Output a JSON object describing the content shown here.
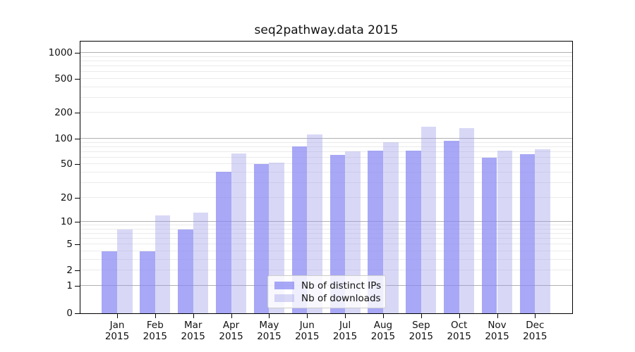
{
  "chart_data": {
    "type": "bar",
    "title": "seq2pathway.data 2015",
    "y_scale": "log10(1+x)",
    "grid": "on",
    "legend_position": "lower center",
    "categories": [
      "Jan",
      "Feb",
      "Mar",
      "Apr",
      "May",
      "Jun",
      "Jul",
      "Aug",
      "Sep",
      "Oct",
      "Nov",
      "Dec"
    ],
    "x_year_label": "2015",
    "y_ticks": [
      0,
      1,
      2,
      5,
      10,
      20,
      50,
      100,
      200,
      500,
      1000
    ],
    "ylim": [
      0,
      1300
    ],
    "series": [
      {
        "key": "distinct-ips",
        "name": "Nb of distinct IPs",
        "fill": "rgba(134,134,242,0.72)",
        "values": [
          4,
          4,
          8,
          41,
          50,
          81,
          64,
          73,
          72,
          94,
          60,
          66
        ]
      },
      {
        "key": "downloads",
        "name": "Nb of downloads",
        "fill": "rgba(157,157,232,0.40)",
        "values": [
          8,
          12,
          13,
          67,
          52,
          113,
          71,
          91,
          138,
          134,
          72,
          75
        ]
      }
    ],
    "colors": {
      "axis": "#000000",
      "grid_major": "#b0b0b0",
      "grid_minor": "#ebebeb",
      "text": "#111111"
    }
  }
}
